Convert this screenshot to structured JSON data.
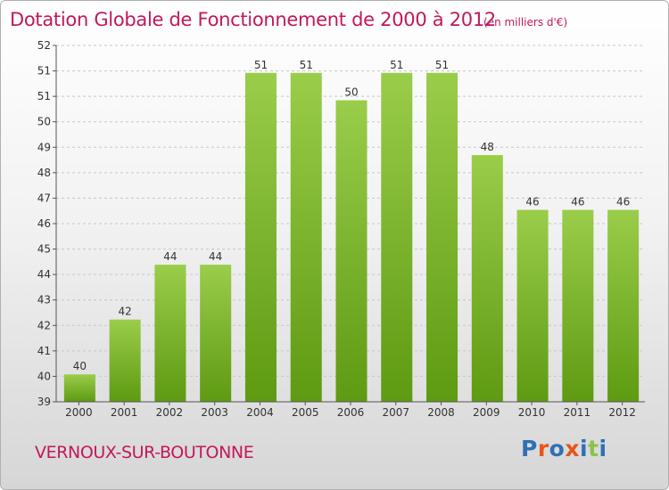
{
  "header": {
    "title": "Dotation Globale de Fonctionnement de 2000 à 2012",
    "unit": "(en milliers d'€)"
  },
  "footer": {
    "commune": "VERNOUX-SUR-BOUTONNE",
    "logo": "Proxiti"
  },
  "colors": {
    "title": "#c2185b",
    "bar_top": "#9acd4a",
    "bar_bottom": "#5e9a12",
    "logo_letters": [
      "#2f6fb7",
      "#e8541b",
      "#2f6fb7",
      "#e8541b",
      "#2f6fb7",
      "#8bc34a",
      "#2f6fb7"
    ]
  },
  "chart_data": {
    "type": "bar",
    "categories": [
      "2000",
      "2001",
      "2002",
      "2003",
      "2004",
      "2005",
      "2006",
      "2007",
      "2008",
      "2009",
      "2010",
      "2011",
      "2012"
    ],
    "values": [
      40,
      42,
      44,
      44,
      51,
      51,
      50,
      51,
      51,
      48,
      46,
      46,
      46
    ],
    "data_labels": [
      "40",
      "42",
      "44",
      "44",
      "51",
      "51",
      "50",
      "51",
      "51",
      "48",
      "46",
      "46",
      "46"
    ],
    "yticks": [
      "39",
      "40",
      "41",
      "42",
      "43",
      "44",
      "45",
      "46",
      "47",
      "48",
      "49",
      "50",
      "51",
      "51",
      "52"
    ],
    "ylim": [
      39,
      52
    ],
    "grid": true,
    "title": "Dotation Globale de Fonctionnement de 2000 à 2012",
    "ylabel": "(en milliers d'€)"
  }
}
